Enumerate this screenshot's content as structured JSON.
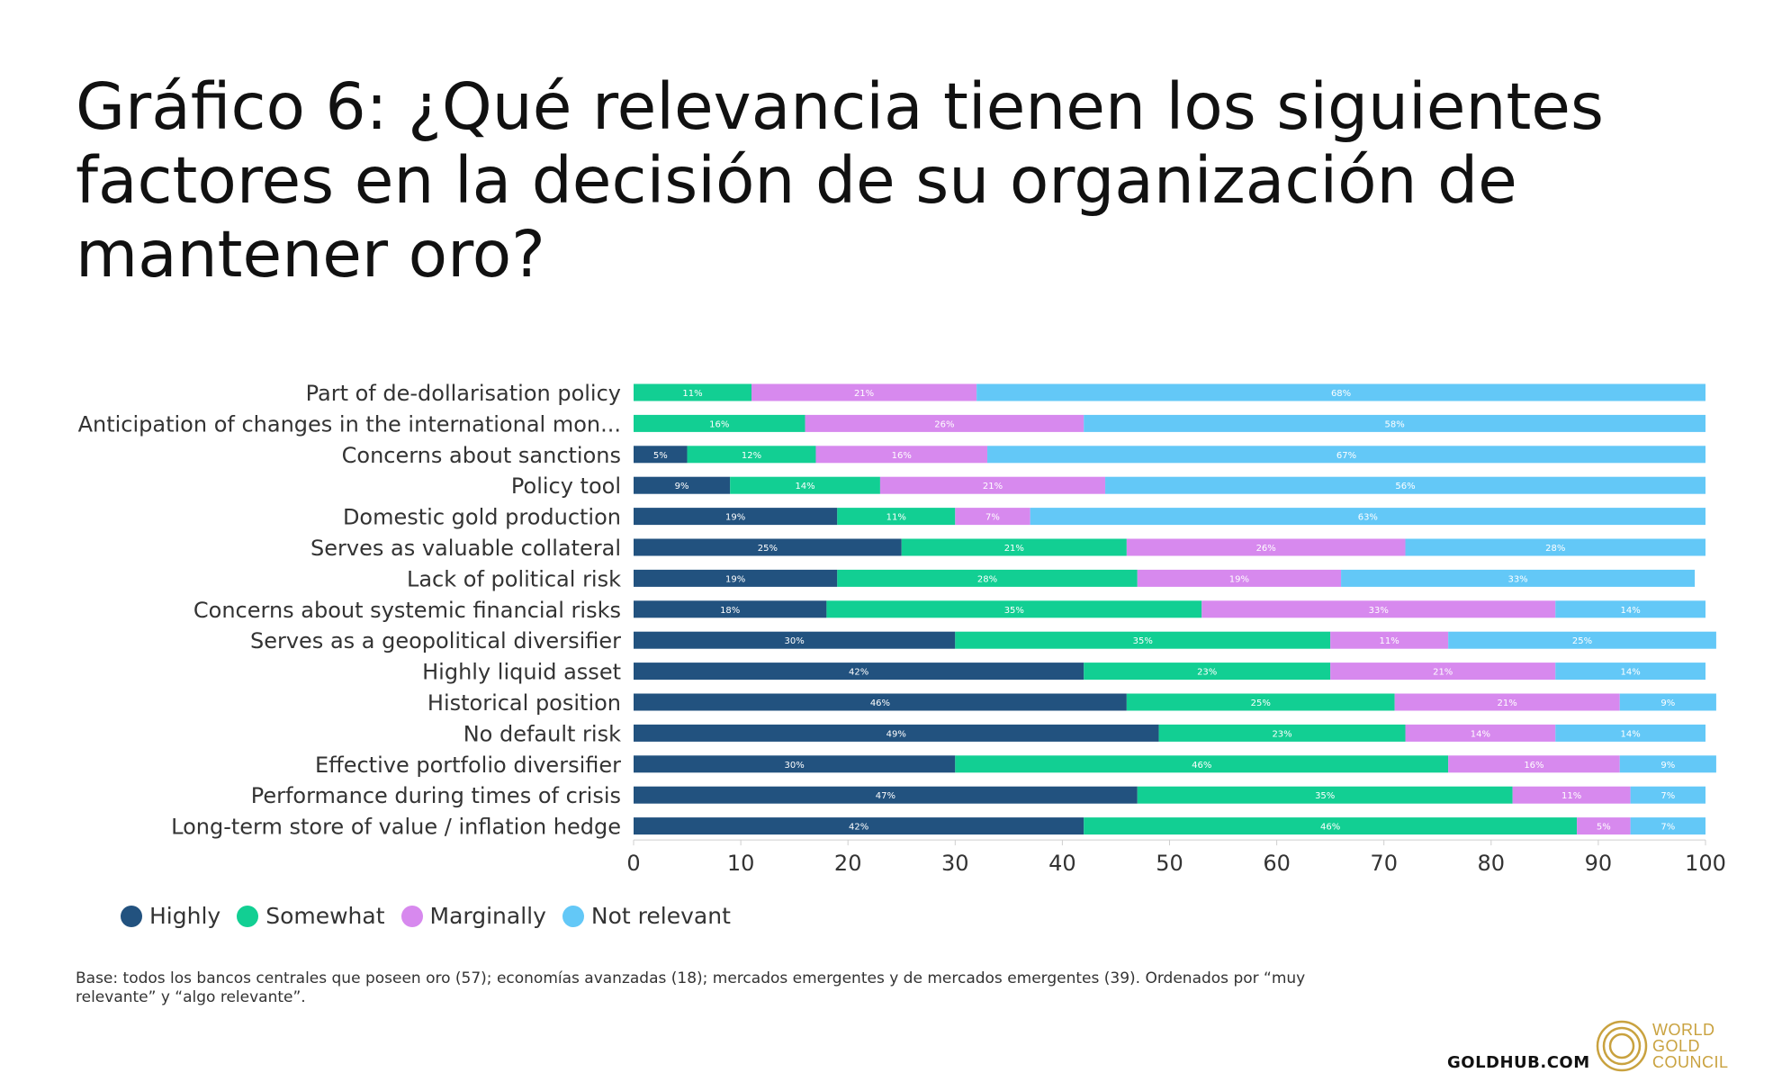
{
  "title": "Gráfico 6: ¿Qué relevancia tienen los siguientes factores en la decisión de su organización de mantener oro?",
  "footnote": "Base: todos los bancos centrales que poseen oro (57); economías avanzadas (18); mercados emergentes y de mercados emergentes (39). Ordenados por “muy relevante” y “algo relevante”.",
  "brand": {
    "site": "GOLDHUB.COM",
    "logo_lines": [
      "WORLD",
      "GOLD",
      "COUNCIL"
    ],
    "logo_color": "#c9a23f"
  },
  "chart_data": {
    "type": "bar",
    "orientation": "horizontal",
    "stacked": true,
    "categories": [
      "Part of de-dollarisation policy",
      "Anticipation of changes in the international mon...",
      "Concerns about sanctions",
      "Policy tool",
      "Domestic gold production",
      "Serves as valuable collateral",
      "Lack of political risk",
      "Concerns about systemic financial risks",
      "Serves as a geopolitical diversifier",
      "Highly liquid asset",
      "Historical position",
      "No default risk",
      "Effective portfolio diversifier",
      "Performance during times of crisis",
      "Long-term store of value / inflation hedge"
    ],
    "series": [
      {
        "name": "Highly",
        "color": "#22527f",
        "values": [
          0,
          0,
          5,
          9,
          19,
          25,
          19,
          18,
          30,
          42,
          46,
          49,
          30,
          47,
          42
        ]
      },
      {
        "name": "Somewhat",
        "color": "#12cf93",
        "values": [
          11,
          16,
          12,
          14,
          11,
          21,
          28,
          35,
          35,
          23,
          25,
          23,
          46,
          35,
          46
        ]
      },
      {
        "name": "Marginally",
        "color": "#d789ee",
        "values": [
          21,
          26,
          16,
          21,
          7,
          26,
          19,
          33,
          11,
          21,
          21,
          14,
          16,
          11,
          5
        ]
      },
      {
        "name": "Not relevant",
        "color": "#63c8f7",
        "values": [
          68,
          58,
          67,
          56,
          63,
          28,
          33,
          14,
          25,
          14,
          9,
          14,
          9,
          7,
          7
        ]
      }
    ],
    "xlim": [
      0,
      100
    ],
    "xticks": [
      0,
      10,
      20,
      30,
      40,
      50,
      60,
      70,
      80,
      90,
      100
    ],
    "legend_position": "bottom-left",
    "grid": false
  }
}
